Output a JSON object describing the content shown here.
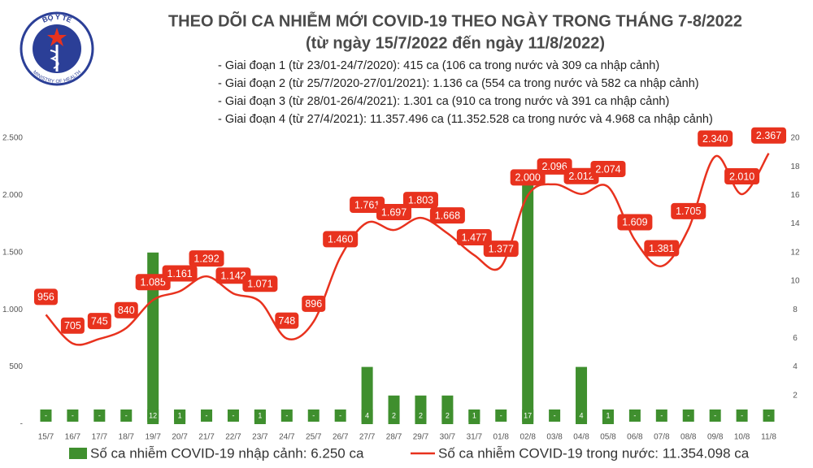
{
  "logo": {
    "top": "BỘ Y TẾ",
    "bottom": "MINISTRY OF HEALTH"
  },
  "chart_data": {
    "type": "combo",
    "title": "THEO DÕI CA NHIỄM MỚI COVID-19 THEO NGÀY TRONG THÁNG 7-8/2022",
    "subtitle": "(từ ngày 15/7/2022 đến ngày 11/8/2022)",
    "notes": [
      "- Giai đoạn 1 (từ 23/01-24/7/2020): 415 ca (106 ca trong nước và 309 ca nhập cảnh)",
      "- Giai đoạn 2 (từ 25/7/2020-27/01/2021): 1.136 ca (554 ca trong nước và 582 ca nhập cảnh)",
      "- Giai đoạn 3 (từ 28/01-26/4/2021): 1.301 ca (910 ca trong nước và 391 ca nhập cảnh)",
      "- Giai đoạn 4 (từ 27/4/2021): 11.357.496 ca (11.352.528 ca trong nước và 4.968 ca nhập cảnh)"
    ],
    "categories": [
      "15/7",
      "16/7",
      "17/7",
      "18/7",
      "19/7",
      "20/7",
      "21/7",
      "22/7",
      "23/7",
      "24/7",
      "25/7",
      "26/7",
      "27/7",
      "28/7",
      "29/7",
      "30/7",
      "31/7",
      "01/8",
      "02/8",
      "03/8",
      "04/8",
      "05/8",
      "06/8",
      "07/8",
      "08/8",
      "09/8",
      "10/8",
      "11/8"
    ],
    "series": [
      {
        "name": "Số ca nhiễm COVID-19 nhập cảnh: 6.250 ca",
        "type": "bar",
        "axis": "y2",
        "color": "#3f8f2e",
        "values": [
          0,
          0,
          0,
          0,
          12,
          1,
          0,
          0,
          1,
          0,
          0,
          0,
          4,
          2,
          2,
          2,
          1,
          0,
          17,
          0,
          4,
          1,
          0,
          0,
          0,
          0,
          0,
          0
        ],
        "value_labels": [
          "-",
          "-",
          "-",
          "-",
          "12",
          "1",
          "-",
          "-",
          "1",
          "-",
          "-",
          "-",
          "4",
          "2",
          "2",
          "2",
          "1",
          "-",
          "17",
          "-",
          "4",
          "1",
          "-",
          "-",
          "-",
          "-",
          "-",
          "-"
        ]
      },
      {
        "name": "Số ca nhiễm COVID-19 trong nước: 11.354.098 ca",
        "type": "line",
        "color": "#e8321e",
        "values": [
          956,
          705,
          745,
          840,
          1085,
          1161,
          1292,
          1142,
          1071,
          748,
          896,
          1460,
          1761,
          1697,
          1803,
          1668,
          1477,
          1377,
          2000,
          2096,
          2012,
          2074,
          1609,
          1381,
          1705,
          2340,
          2010,
          2367
        ],
        "value_labels": [
          "956",
          "705",
          "745",
          "840",
          "1.085",
          "1.161",
          "1.292",
          "1.142",
          "1.071",
          "748",
          "896",
          "1.460",
          "1.761",
          "1.697",
          "1.803",
          "1.668",
          "1.477",
          "1.377",
          "2.000",
          "2.096",
          "2.012",
          "2.074",
          "1.609",
          "1.381",
          "1.705",
          "2.340",
          "2.010",
          "2.367"
        ]
      }
    ],
    "ylim": [
      0,
      2500
    ],
    "yticks": [
      {
        "value": 0,
        "label": "-"
      },
      500,
      {
        "value": 1000,
        "label": "1.000"
      },
      {
        "value": 1500,
        "label": "1.500"
      },
      {
        "value": 2000,
        "label": "2.000"
      },
      {
        "value": 2500,
        "label": "2.500"
      }
    ],
    "y2lim": [
      0,
      20
    ],
    "y2ticks": [
      2,
      4,
      6,
      8,
      10,
      12,
      14,
      16,
      18,
      20
    ],
    "legend": "bottom"
  }
}
